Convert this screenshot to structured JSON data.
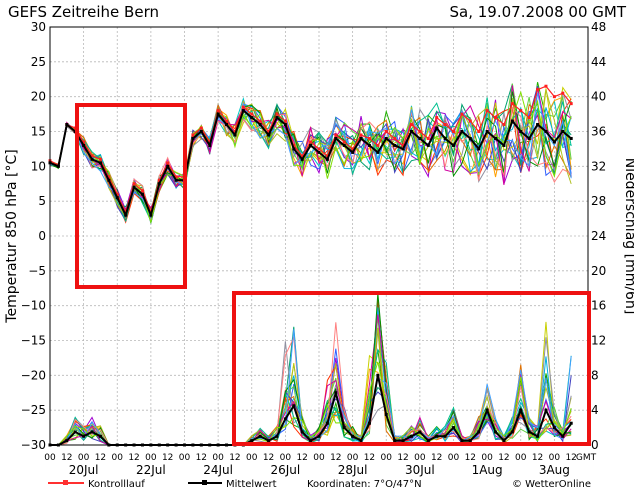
{
  "header": {
    "title": "GEFS Zeitreihe Bern",
    "run_label": "Sa, 19.07.2008 00 GMT"
  },
  "footer": {
    "control_label": "Kontrolllauf",
    "mean_label": "Mittelwert",
    "coords_label": "Koordinaten: 7°O/47°N",
    "brand_label": "© WetterOnline"
  },
  "colors": {
    "control": "#ff2020",
    "mean": "#000000",
    "grid": "#b8b8b8",
    "highlight_box": "#ee1111",
    "members": [
      "#00c8c8",
      "#20b000",
      "#ffa000",
      "#a000d0",
      "#3060ff",
      "#c8d000",
      "#00a070",
      "#ff3000",
      "#9090a0",
      "#60d040",
      "#00b0e0",
      "#e07000",
      "#4040c0",
      "#00c090",
      "#b0c020",
      "#d000a0",
      "#009000",
      "#ff8080",
      "#40a0ff",
      "#80e000"
    ]
  },
  "chart_data": {
    "type": "line",
    "title": "GEFS Zeitreihe Bern",
    "ylabel": "Temperatur 850 hPa [°C]",
    "y2label": "Niederschlag [mm/6h]",
    "ylim": [
      -30,
      30
    ],
    "y2lim": [
      0,
      48
    ],
    "yticks": [
      "30",
      "25",
      "20",
      "15",
      "10",
      "5",
      "0",
      "−5",
      "−10",
      "−15",
      "−20",
      "−25",
      "−30"
    ],
    "y2ticks": [
      "48",
      "44",
      "40",
      "36",
      "32",
      "28",
      "24",
      "20",
      "16",
      "12",
      "8",
      "4",
      "0"
    ],
    "x_hour_ticks": [
      "00",
      "12",
      "00",
      "12",
      "00",
      "12",
      "00",
      "12",
      "00",
      "12",
      "00",
      "12",
      "00",
      "12",
      "00",
      "12",
      "00",
      "12",
      "00",
      "12",
      "00",
      "12",
      "00",
      "12",
      "00",
      "12",
      "00",
      "12",
      "00",
      "12",
      "00",
      "12",
      "GMT"
    ],
    "x_date_labels": [
      {
        "label": "20Jul",
        "day": 1
      },
      {
        "label": "22Jul",
        "day": 3
      },
      {
        "label": "24Jul",
        "day": 5
      },
      {
        "label": "26Jul",
        "day": 7
      },
      {
        "label": "28Jul",
        "day": 9
      },
      {
        "label": "30Jul",
        "day": 11
      },
      {
        "label": "1Aug",
        "day": 13
      },
      {
        "label": "3Aug",
        "day": 15
      }
    ],
    "grid": true,
    "series": [
      {
        "name": "Mittelwert",
        "kind": "temperature_mean",
        "x": [
          0,
          0.25,
          0.5,
          0.75,
          1,
          1.25,
          1.5,
          1.75,
          2,
          2.25,
          2.5,
          2.75,
          3,
          3.25,
          3.5,
          3.75,
          4,
          4.25,
          4.5,
          4.75,
          5,
          5.25,
          5.5,
          5.75,
          6,
          6.25,
          6.5,
          6.75,
          7,
          7.25,
          7.5,
          7.75,
          8,
          8.25,
          8.5,
          8.75,
          9,
          9.25,
          9.5,
          9.75,
          10,
          10.25,
          10.5,
          10.75,
          11,
          11.25,
          11.5,
          11.75,
          12,
          12.25,
          12.5,
          12.75,
          13,
          13.25,
          13.5,
          13.75,
          14,
          14.25,
          14.5,
          14.75,
          15,
          15.25,
          15.5
        ],
        "values": [
          10.5,
          10,
          16,
          15,
          13,
          11,
          10.5,
          8,
          5.5,
          3,
          7,
          6,
          3,
          7.5,
          10,
          8,
          8,
          14,
          15,
          13,
          17.5,
          16,
          14.5,
          18,
          17,
          16,
          14.5,
          17,
          16,
          12.5,
          11,
          13,
          12,
          11,
          14,
          13,
          12,
          14,
          13,
          12,
          14,
          13,
          12.5,
          15,
          14,
          13,
          15.5,
          14,
          13,
          15,
          14,
          12.5,
          15,
          14,
          13,
          16.5,
          15,
          14,
          16,
          15,
          13.5,
          15,
          14
        ]
      },
      {
        "name": "Kontrolllauf",
        "kind": "temperature_control",
        "x": [
          0,
          0.25,
          0.5,
          0.75,
          1,
          1.25,
          1.5,
          1.75,
          2,
          2.25,
          2.5,
          2.75,
          3,
          3.25,
          3.5,
          3.75,
          4,
          4.25,
          4.5,
          4.75,
          5,
          5.25,
          5.5,
          5.75,
          6,
          6.25,
          6.5,
          6.75,
          7,
          7.25,
          7.5,
          7.75,
          8,
          8.25,
          8.5,
          8.75,
          9,
          9.25,
          9.5,
          9.75,
          10,
          10.25,
          10.5,
          10.75,
          11,
          11.25,
          11.5,
          11.75,
          12,
          12.25,
          12.5,
          12.75,
          13,
          13.25,
          13.5,
          13.75,
          14,
          14.25,
          14.5,
          14.75,
          15,
          15.25,
          15.5
        ],
        "values": [
          10.8,
          10.2,
          16,
          15.5,
          13.5,
          11.5,
          11,
          8.5,
          6,
          3.5,
          7.5,
          6.5,
          3.5,
          8,
          10.5,
          8.5,
          8.5,
          14.5,
          15.5,
          13.5,
          18,
          16.5,
          15,
          18.5,
          17.5,
          16.5,
          15,
          17.5,
          16.5,
          13,
          11.5,
          13.5,
          12.5,
          11.5,
          14.5,
          13.5,
          12.5,
          14.5,
          14,
          13,
          15,
          14,
          13,
          16,
          15,
          14,
          17,
          16,
          15,
          17.5,
          16.5,
          15,
          18,
          17,
          16,
          19,
          18,
          17,
          21,
          21.5,
          20,
          20.5,
          19
        ]
      },
      {
        "name": "Mittelwert",
        "kind": "precip_mean",
        "x": [
          0,
          0.25,
          0.5,
          0.75,
          1,
          1.25,
          1.5,
          1.75,
          2,
          2.25,
          2.5,
          2.75,
          3,
          3.25,
          3.5,
          3.75,
          4,
          4.25,
          4.5,
          4.75,
          5,
          5.25,
          5.5,
          5.75,
          6,
          6.25,
          6.5,
          6.75,
          7,
          7.25,
          7.5,
          7.75,
          8,
          8.25,
          8.5,
          8.75,
          9,
          9.25,
          9.5,
          9.75,
          10,
          10.25,
          10.5,
          10.75,
          11,
          11.25,
          11.5,
          11.75,
          12,
          12.25,
          12.5,
          12.75,
          13,
          13.25,
          13.5,
          13.75,
          14,
          14.25,
          14.5,
          14.75,
          15,
          15.25,
          15.5
        ],
        "values": [
          0,
          0,
          0.5,
          1.5,
          1,
          1.5,
          1,
          0,
          0,
          0,
          0,
          0,
          0,
          0,
          0,
          0,
          0,
          0,
          0,
          0,
          0,
          0,
          0,
          0,
          0.5,
          1,
          0.5,
          1,
          3,
          4.5,
          1.5,
          0.5,
          1,
          2.5,
          6,
          2,
          1,
          0.5,
          2.5,
          8,
          3.5,
          0.5,
          0.5,
          1,
          1.5,
          0.5,
          1,
          1,
          2,
          0.5,
          0.5,
          1.5,
          4,
          1.5,
          0.5,
          1.5,
          4,
          1.5,
          1,
          4,
          2,
          1,
          2.5
        ]
      }
    ]
  }
}
